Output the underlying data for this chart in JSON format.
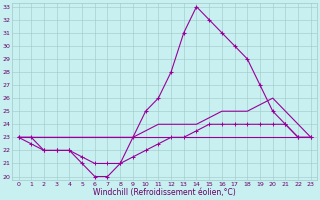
{
  "xlabel": "Windchill (Refroidissement éolien,°C)",
  "bg_color": "#c8f0f0",
  "line_color": "#990099",
  "hours": [
    0,
    1,
    2,
    3,
    4,
    5,
    6,
    7,
    8,
    9,
    10,
    11,
    12,
    13,
    14,
    15,
    16,
    17,
    18,
    19,
    20,
    21,
    22,
    23
  ],
  "line1_y": [
    23,
    23,
    22,
    22,
    22,
    21,
    20,
    20,
    21,
    23,
    25,
    26,
    28,
    31,
    33,
    32,
    31,
    30,
    29,
    27,
    25,
    24,
    23,
    23
  ],
  "line2_y": [
    23,
    23,
    23,
    23,
    23,
    23,
    23,
    23,
    23,
    23,
    23.5,
    24,
    24,
    24,
    24,
    24.5,
    25,
    25,
    25,
    25.5,
    26,
    25,
    24,
    23
  ],
  "line3_y": [
    23,
    23,
    23,
    23,
    23,
    23,
    23,
    23,
    23,
    23,
    23,
    23,
    23,
    23,
    23,
    23,
    23,
    23,
    23,
    23,
    23,
    23,
    23,
    23
  ],
  "line4_y": [
    23,
    22.5,
    22,
    22,
    22,
    21.5,
    21,
    21,
    21,
    21.5,
    22,
    22.5,
    23,
    23,
    23.5,
    24,
    24,
    24,
    24,
    24,
    24,
    24,
    23,
    23
  ],
  "ylim": [
    20,
    33
  ],
  "yticks": [
    20,
    21,
    22,
    23,
    24,
    25,
    26,
    27,
    28,
    29,
    30,
    31,
    32,
    33
  ],
  "xticks": [
    0,
    1,
    2,
    3,
    4,
    5,
    6,
    7,
    8,
    9,
    10,
    11,
    12,
    13,
    14,
    15,
    16,
    17,
    18,
    19,
    20,
    21,
    22,
    23
  ]
}
